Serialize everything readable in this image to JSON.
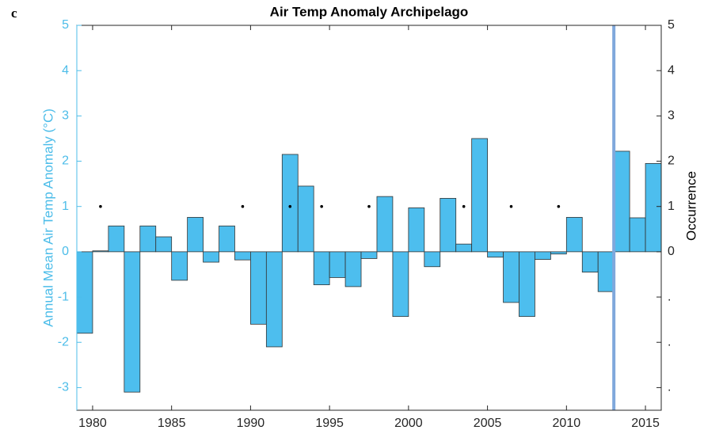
{
  "chart_data": {
    "type": "bar",
    "panel_label": "c",
    "title": "Air Temp Anomaly Archipelago",
    "ylabel": "Annual Mean Air Temp Anomaly (°C)",
    "y2label": "Occurrence",
    "xlim": [
      1979,
      2016
    ],
    "xticks": [
      1980,
      1985,
      1990,
      1995,
      2000,
      2005,
      2010,
      2015
    ],
    "ylim": [
      -3.5,
      5
    ],
    "yticks": [
      -3,
      -2,
      -1,
      0,
      1,
      2,
      3,
      4,
      5
    ],
    "y2lim": [
      -3.5,
      5
    ],
    "y2ticks": [
      {
        "value": -3,
        "label": "."
      },
      {
        "value": -2,
        "label": "."
      },
      {
        "value": -1,
        "label": "."
      },
      0,
      1,
      2,
      3,
      4,
      5
    ],
    "ycolor": "#4dbde9",
    "vline": 2013,
    "vline_color": "#7fa8dc",
    "series": [
      {
        "color": "#4dbeee",
        "x": [
          1979,
          1980,
          1981,
          1982,
          1983,
          1984,
          1985,
          1986,
          1987,
          1988,
          1989,
          1990,
          1991,
          1992,
          1993,
          1994,
          1995,
          1996,
          1997,
          1998,
          1999,
          2000,
          2001,
          2002,
          2003,
          2004,
          2005,
          2006,
          2007,
          2008,
          2009,
          2010,
          2011,
          2012,
          2013,
          2014,
          2015
        ],
        "values": [
          -1.8,
          0.02,
          0.57,
          -3.1,
          0.57,
          0.33,
          -0.63,
          0.76,
          -0.23,
          0.57,
          -0.18,
          -1.6,
          -2.1,
          2.15,
          1.45,
          -0.73,
          -0.57,
          -0.77,
          -0.15,
          1.22,
          -1.43,
          0.97,
          -0.33,
          1.18,
          0.17,
          2.5,
          -0.12,
          -1.12,
          -1.43,
          -0.17,
          -0.05,
          0.76,
          -0.45,
          -0.88,
          2.22,
          0.75,
          1.95
        ]
      },
      {
        "axis": "y2",
        "color": "#000000",
        "x": [
          1980,
          1989,
          1992,
          1994,
          1997,
          2003,
          2006,
          2009
        ],
        "values": [
          1,
          1,
          1,
          1,
          1,
          1,
          1,
          1
        ]
      }
    ]
  }
}
